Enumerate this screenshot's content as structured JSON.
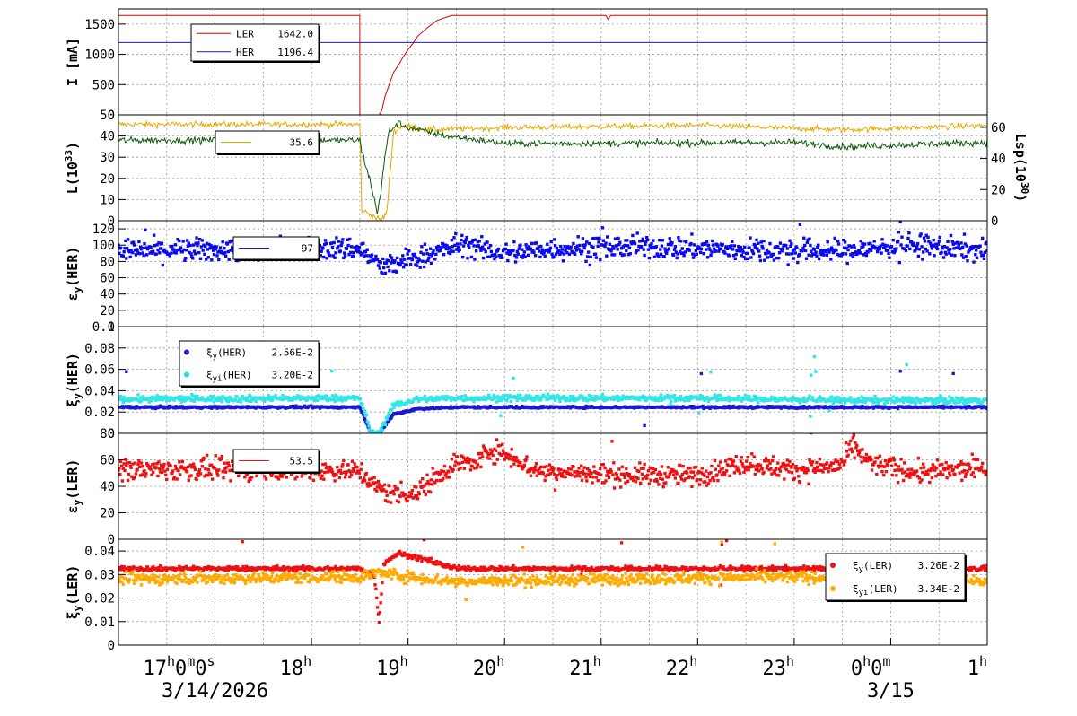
{
  "chart_data": {
    "type": "line",
    "x_range_hours": [
      16.0,
      25.0
    ],
    "hour_ticks": [
      {
        "h": 17,
        "base": "17",
        "parts": [
          [
            "h",
            "0"
          ],
          [
            "m",
            "0"
          ],
          [
            "s",
            ""
          ]
        ]
      },
      {
        "h": 18,
        "base": "18",
        "parts": [
          [
            "h",
            ""
          ]
        ]
      },
      {
        "h": 19,
        "base": "19",
        "parts": [
          [
            "h",
            ""
          ]
        ]
      },
      {
        "h": 20,
        "base": "20",
        "parts": [
          [
            "h",
            ""
          ]
        ]
      },
      {
        "h": 21,
        "base": "21",
        "parts": [
          [
            "h",
            ""
          ]
        ]
      },
      {
        "h": 22,
        "base": "22",
        "parts": [
          [
            "h",
            ""
          ]
        ]
      },
      {
        "h": 23,
        "base": "23",
        "parts": [
          [
            "h",
            ""
          ]
        ]
      },
      {
        "h": 24,
        "base": "0",
        "parts": [
          [
            "h",
            "0"
          ],
          [
            "m",
            ""
          ]
        ]
      },
      {
        "h": 25,
        "base": "1",
        "parts": [
          [
            "h",
            ""
          ]
        ]
      }
    ],
    "dates": [
      {
        "h": 17,
        "text": "3/14/2026"
      },
      {
        "h": 24,
        "text": "3/15"
      }
    ],
    "panels": [
      {
        "id": "current",
        "ylabel": "I [mA]",
        "ylim": [
          0,
          1750
        ],
        "yticks": [
          0,
          500,
          1000,
          1500
        ],
        "legend": [
          {
            "name": "LER",
            "value": "1642.0",
            "color": "#dd0000"
          },
          {
            "name": "HER",
            "value": "1196.4",
            "color": "#1a1acc"
          }
        ],
        "series": [
          {
            "name": "LER",
            "color": "#dd0000",
            "kind": "line",
            "points": [
              [
                16.0,
                1642
              ],
              [
                18.5,
                1642
              ],
              [
                18.5,
                0
              ],
              [
                18.7,
                0
              ],
              [
                18.73,
                80
              ],
              [
                18.76,
                300
              ],
              [
                18.8,
                480
              ],
              [
                18.85,
                700
              ],
              [
                18.9,
                820
              ],
              [
                18.95,
                960
              ],
              [
                19.0,
                1080
              ],
              [
                19.05,
                1180
              ],
              [
                19.1,
                1300
              ],
              [
                19.2,
                1440
              ],
              [
                19.3,
                1560
              ],
              [
                19.45,
                1642
              ],
              [
                21.05,
                1642
              ],
              [
                21.07,
                1580
              ],
              [
                21.1,
                1642
              ],
              [
                25.0,
                1642
              ]
            ]
          },
          {
            "name": "HER",
            "color": "#1a1acc",
            "kind": "line",
            "points": [
              [
                16.0,
                1196
              ],
              [
                25.0,
                1196
              ]
            ]
          }
        ]
      },
      {
        "id": "luminosity",
        "ylabel": "L(10^33)",
        "ylim": [
          0,
          50
        ],
        "yticks": [
          0,
          10,
          20,
          30,
          40,
          50
        ],
        "right_axis": {
          "label": "Lsp(10^30)",
          "ylim": [
            0,
            68
          ],
          "yticks": [
            0,
            20,
            40,
            60
          ]
        },
        "legend": [
          {
            "name": "",
            "value": "35.6",
            "color": "#ddaa00"
          }
        ],
        "series": [
          {
            "name": "",
            "color": "#e6a800",
            "kind": "line",
            "base": 45.5,
            "noise": 0.7,
            "points": [
              [
                16.0,
                45.5
              ],
              [
                18.5,
                45.5
              ],
              [
                18.52,
                5
              ],
              [
                18.65,
                2
              ],
              [
                18.72,
                0
              ],
              [
                18.78,
                4
              ],
              [
                18.85,
                42
              ],
              [
                18.95,
                45
              ],
              [
                19.2,
                43
              ],
              [
                20.0,
                44
              ],
              [
                22.0,
                45
              ],
              [
                23.5,
                43
              ],
              [
                25.0,
                45
              ]
            ]
          },
          {
            "name": "",
            "color": "#0c5a0c",
            "kind": "line",
            "base": 38,
            "noise": 0.8,
            "points": [
              [
                16.0,
                38
              ],
              [
                18.5,
                38
              ],
              [
                18.52,
                33
              ],
              [
                18.6,
                20
              ],
              [
                18.68,
                4
              ],
              [
                18.72,
                14
              ],
              [
                18.76,
                30
              ],
              [
                18.8,
                42
              ],
              [
                18.9,
                46
              ],
              [
                19.0,
                44
              ],
              [
                19.4,
                40
              ],
              [
                20.0,
                36.5
              ],
              [
                21.0,
                36.5
              ],
              [
                23.0,
                37
              ],
              [
                23.5,
                35
              ],
              [
                25.0,
                37
              ]
            ]
          }
        ]
      },
      {
        "id": "emit_her",
        "ylabel": "εy(HER)",
        "ylim": [
          0,
          130
        ],
        "yticks": [
          0,
          20,
          40,
          60,
          80,
          100,
          120
        ],
        "legend": [
          {
            "name": "",
            "value": "97",
            "color": "#1a1acc"
          }
        ],
        "series": [
          {
            "name": "",
            "color": "#0a0aee",
            "kind": "scatter",
            "noise": 7,
            "points": [
              [
                16.0,
                93
              ],
              [
                18.5,
                96
              ],
              [
                18.6,
                85
              ],
              [
                18.75,
                72
              ],
              [
                18.9,
                78
              ],
              [
                19.3,
                92
              ],
              [
                19.6,
                102
              ],
              [
                19.8,
                93
              ],
              [
                20.0,
                90
              ],
              [
                20.5,
                96
              ],
              [
                21.5,
                98
              ],
              [
                22.5,
                94
              ],
              [
                23.5,
                93
              ],
              [
                24.2,
                100
              ],
              [
                25.0,
                93
              ]
            ]
          }
        ]
      },
      {
        "id": "tune_her",
        "ylabel": "ξy(HER)",
        "ylim": [
          0,
          0.1
        ],
        "yticks": [
          0,
          0.02,
          0.04,
          0.06,
          0.08,
          0.1
        ],
        "ytick_labels": [
          "0",
          "0.02",
          "0.04",
          "0.06",
          "0.08",
          "0.1"
        ],
        "legend": [
          {
            "name": "ξy(HER)",
            "value": "2.56E-2",
            "color": "#1a1acc"
          },
          {
            "name": "ξyi(HER)",
            "value": "3.20E-2",
            "color": "#22dddd"
          }
        ],
        "series": [
          {
            "name": "ξy(HER)",
            "color": "#1a1acc",
            "kind": "scatter",
            "noise": 0.0005,
            "points": [
              [
                16.0,
                0.0245
              ],
              [
                18.5,
                0.0245
              ],
              [
                18.62,
                0.0
              ],
              [
                18.7,
                0.0
              ],
              [
                18.85,
                0.018
              ],
              [
                19.1,
                0.023
              ],
              [
                19.5,
                0.0245
              ],
              [
                25.0,
                0.0245
              ]
            ]
          },
          {
            "name": "ξyi(HER)",
            "color": "#33e6e6",
            "kind": "scatter",
            "noise": 0.0015,
            "points": [
              [
                16.0,
                0.032
              ],
              [
                18.5,
                0.033
              ],
              [
                18.62,
                0.0
              ],
              [
                18.7,
                0.0
              ],
              [
                18.85,
                0.026
              ],
              [
                19.1,
                0.032
              ],
              [
                19.5,
                0.033
              ],
              [
                20.5,
                0.033
              ],
              [
                22.0,
                0.033
              ],
              [
                23.5,
                0.031
              ],
              [
                25.0,
                0.031
              ]
            ]
          }
        ]
      },
      {
        "id": "emit_ler",
        "ylabel": "εy(LER)",
        "ylim": [
          0,
          80
        ],
        "yticks": [
          0,
          20,
          40,
          60,
          80
        ],
        "legend": [
          {
            "name": "",
            "value": "53.5",
            "color": "#ee1111"
          }
        ],
        "series": [
          {
            "name": "",
            "color": "#ee1111",
            "kind": "scatter",
            "noise": 4,
            "points": [
              [
                16.0,
                53
              ],
              [
                18.5,
                52
              ],
              [
                18.65,
                40
              ],
              [
                18.8,
                35
              ],
              [
                19.1,
                35
              ],
              [
                19.3,
                48
              ],
              [
                19.5,
                58
              ],
              [
                19.7,
                57
              ],
              [
                19.85,
                68
              ],
              [
                20.1,
                62
              ],
              [
                20.3,
                52
              ],
              [
                21.0,
                49
              ],
              [
                22.0,
                48
              ],
              [
                22.5,
                58
              ],
              [
                23.0,
                52
              ],
              [
                23.5,
                56
              ],
              [
                23.6,
                70
              ],
              [
                23.8,
                57
              ],
              [
                24.3,
                50
              ],
              [
                25.0,
                54
              ]
            ]
          }
        ]
      },
      {
        "id": "tune_ler",
        "ylabel": "ξy(LER)",
        "ylim": [
          0,
          0.045
        ],
        "yticks": [
          0,
          0.01,
          0.02,
          0.03,
          0.04
        ],
        "ytick_labels": [
          "0",
          "0.01",
          "0.02",
          "0.03",
          "0.04"
        ],
        "legend": [
          {
            "name": "ξy(LER)",
            "value": "3.26E-2",
            "color": "#ee1111"
          },
          {
            "name": "ξyi(LER)",
            "value": "3.34E-2",
            "color": "#ffaa00"
          }
        ],
        "series": [
          {
            "name": "ξy(LER)",
            "color": "#ee1111",
            "kind": "scatter",
            "noise": 0.0005,
            "points": [
              [
                16.0,
                0.0325
              ],
              [
                18.5,
                0.0325
              ],
              [
                18.65,
                0.03
              ],
              [
                18.7,
                0.01
              ],
              [
                18.75,
                0.035
              ],
              [
                18.9,
                0.039
              ],
              [
                19.2,
                0.036
              ],
              [
                19.5,
                0.0325
              ],
              [
                25.0,
                0.0325
              ]
            ]
          },
          {
            "name": "ξyi(LER)",
            "color": "#ffaa00",
            "kind": "scatter",
            "noise": 0.0012,
            "points": [
              [
                16.0,
                0.028
              ],
              [
                18.5,
                0.029
              ],
              [
                18.7,
                0.031
              ],
              [
                19.0,
                0.029
              ],
              [
                19.5,
                0.027
              ],
              [
                21.0,
                0.028
              ],
              [
                23.0,
                0.029
              ],
              [
                25.0,
                0.027
              ]
            ]
          }
        ]
      }
    ]
  }
}
